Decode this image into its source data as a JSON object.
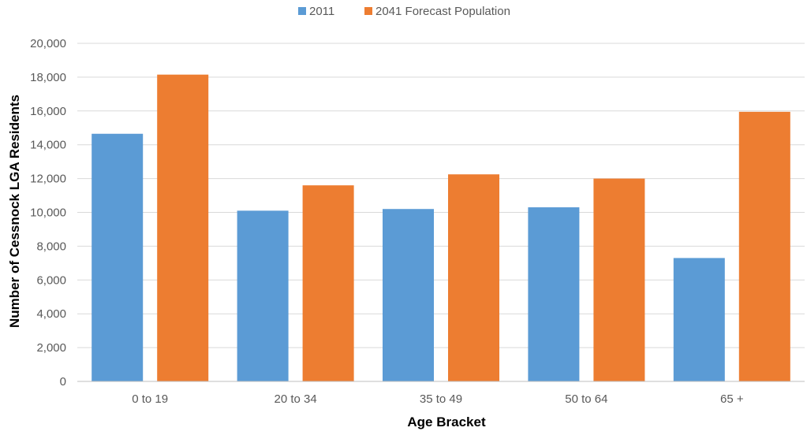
{
  "chart_data": {
    "type": "bar",
    "categories": [
      "0 to 19",
      "20 to 34",
      "35 to 49",
      "50 to 64",
      "65 +"
    ],
    "series": [
      {
        "name": "2011",
        "color": "#5B9BD5",
        "values": [
          14650,
          10100,
          10200,
          10300,
          7300
        ]
      },
      {
        "name": "2041 Forecast Population",
        "color": "#ED7D31",
        "values": [
          18150,
          11600,
          12250,
          12000,
          15950
        ]
      }
    ],
    "xlabel": "Age Bracket",
    "ylabel": "Number of Cessnock LGA Residents",
    "ylim": [
      0,
      20000
    ],
    "yticks": [
      "0",
      "2,000",
      "4,000",
      "6,000",
      "8,000",
      "10,000",
      "12,000",
      "14,000",
      "16,000",
      "18,000",
      "20,000"
    ],
    "grid": true,
    "legend_position": "top"
  }
}
